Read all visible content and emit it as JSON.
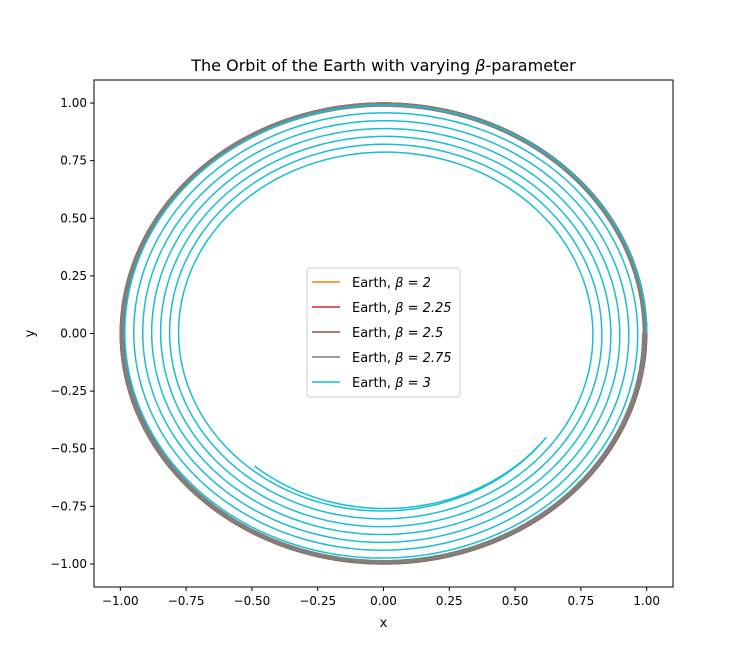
{
  "chart_data": {
    "type": "line",
    "title_prefix": "The Orbit of the Earth with varying ",
    "title_symbol": "β",
    "title_suffix": "-parameter",
    "xlabel": "x",
    "ylabel": "y",
    "xlim": [
      -1.1,
      1.1
    ],
    "ylim": [
      -1.1,
      1.1
    ],
    "xticks": [
      -1.0,
      -0.75,
      -0.5,
      -0.25,
      0.0,
      0.25,
      0.5,
      0.75,
      1.0
    ],
    "xtick_labels": [
      "−1.00",
      "−0.75",
      "−0.50",
      "−0.25",
      "0.00",
      "0.25",
      "0.50",
      "0.75",
      "1.00"
    ],
    "yticks": [
      -1.0,
      -0.75,
      -0.5,
      -0.25,
      0.0,
      0.25,
      0.5,
      0.75,
      1.0
    ],
    "ytick_labels": [
      "−1.00",
      "−0.75",
      "−0.50",
      "−0.25",
      "0.00",
      "0.25",
      "0.50",
      "0.75",
      "1.00"
    ],
    "grid": false,
    "legend_placement": "center",
    "series": [
      {
        "name_prefix": "Earth, ",
        "name_math": "β = 2",
        "color": "#ff7f0e",
        "orbit_start_radius": 1.0,
        "orbit_end_radius": 1.0,
        "end_angle_deg": 0
      },
      {
        "name_prefix": "Earth, ",
        "name_math": "β = 2.25",
        "color": "#d62728",
        "orbit_start_radius": 1.0,
        "orbit_end_radius": 0.999,
        "end_angle_deg": 0
      },
      {
        "name_prefix": "Earth, ",
        "name_math": "β = 2.5",
        "color": "#8c564b",
        "orbit_start_radius": 1.0,
        "orbit_end_radius": 0.995,
        "end_angle_deg": 0
      },
      {
        "name_prefix": "Earth, ",
        "name_math": "β = 2.75",
        "color": "#7f7f7f",
        "orbit_start_radius": 1.0,
        "orbit_end_radius": 0.985,
        "end_angle_deg": 0
      },
      {
        "name_prefix": "Earth, ",
        "name_math": "β = 3",
        "color": "#17becf",
        "orbit_start_radius": 1.0,
        "orbit_end_radius": 0.765,
        "end_angle_deg": 2250
      }
    ]
  }
}
